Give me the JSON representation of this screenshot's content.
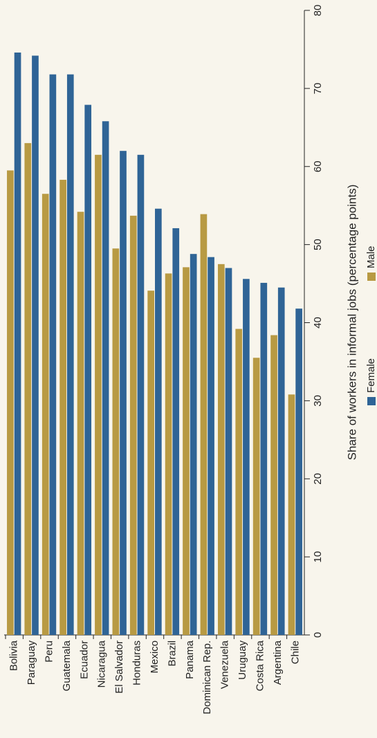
{
  "chart_data": {
    "type": "bar",
    "y_label": "Share of workers in informal jobs (percentage points)",
    "categories": [
      "Bolivia",
      "Paraguay",
      "Peru",
      "Guatemala",
      "Ecuador",
      "Nicaragua",
      "El Salvador",
      "Honduras",
      "Mexico",
      "Brazil",
      "Panama",
      "Dominican Rep.",
      "Venezuela",
      "Uruguay",
      "Costa Rica",
      "Argentina",
      "Chile"
    ],
    "series": [
      {
        "name": "Male",
        "color": "#b89a43",
        "values": [
          59.5,
          63,
          56.5,
          58.3,
          54.2,
          61.5,
          49.5,
          53.7,
          44.1,
          46.3,
          47.1,
          53.9,
          47.5,
          39.2,
          35.5,
          38.4,
          30.8
        ]
      },
      {
        "name": "Female",
        "color": "#2f6496",
        "values": [
          74.6,
          74.2,
          71.8,
          71.8,
          67.9,
          65.8,
          62,
          61.5,
          54.6,
          52.1,
          48.8,
          48.4,
          47,
          45.6,
          45.1,
          44.5,
          41.8
        ]
      }
    ],
    "ylim": [
      0,
      80
    ],
    "yticks": [
      0,
      10,
      20,
      30,
      40,
      50,
      60,
      70,
      80
    ]
  }
}
